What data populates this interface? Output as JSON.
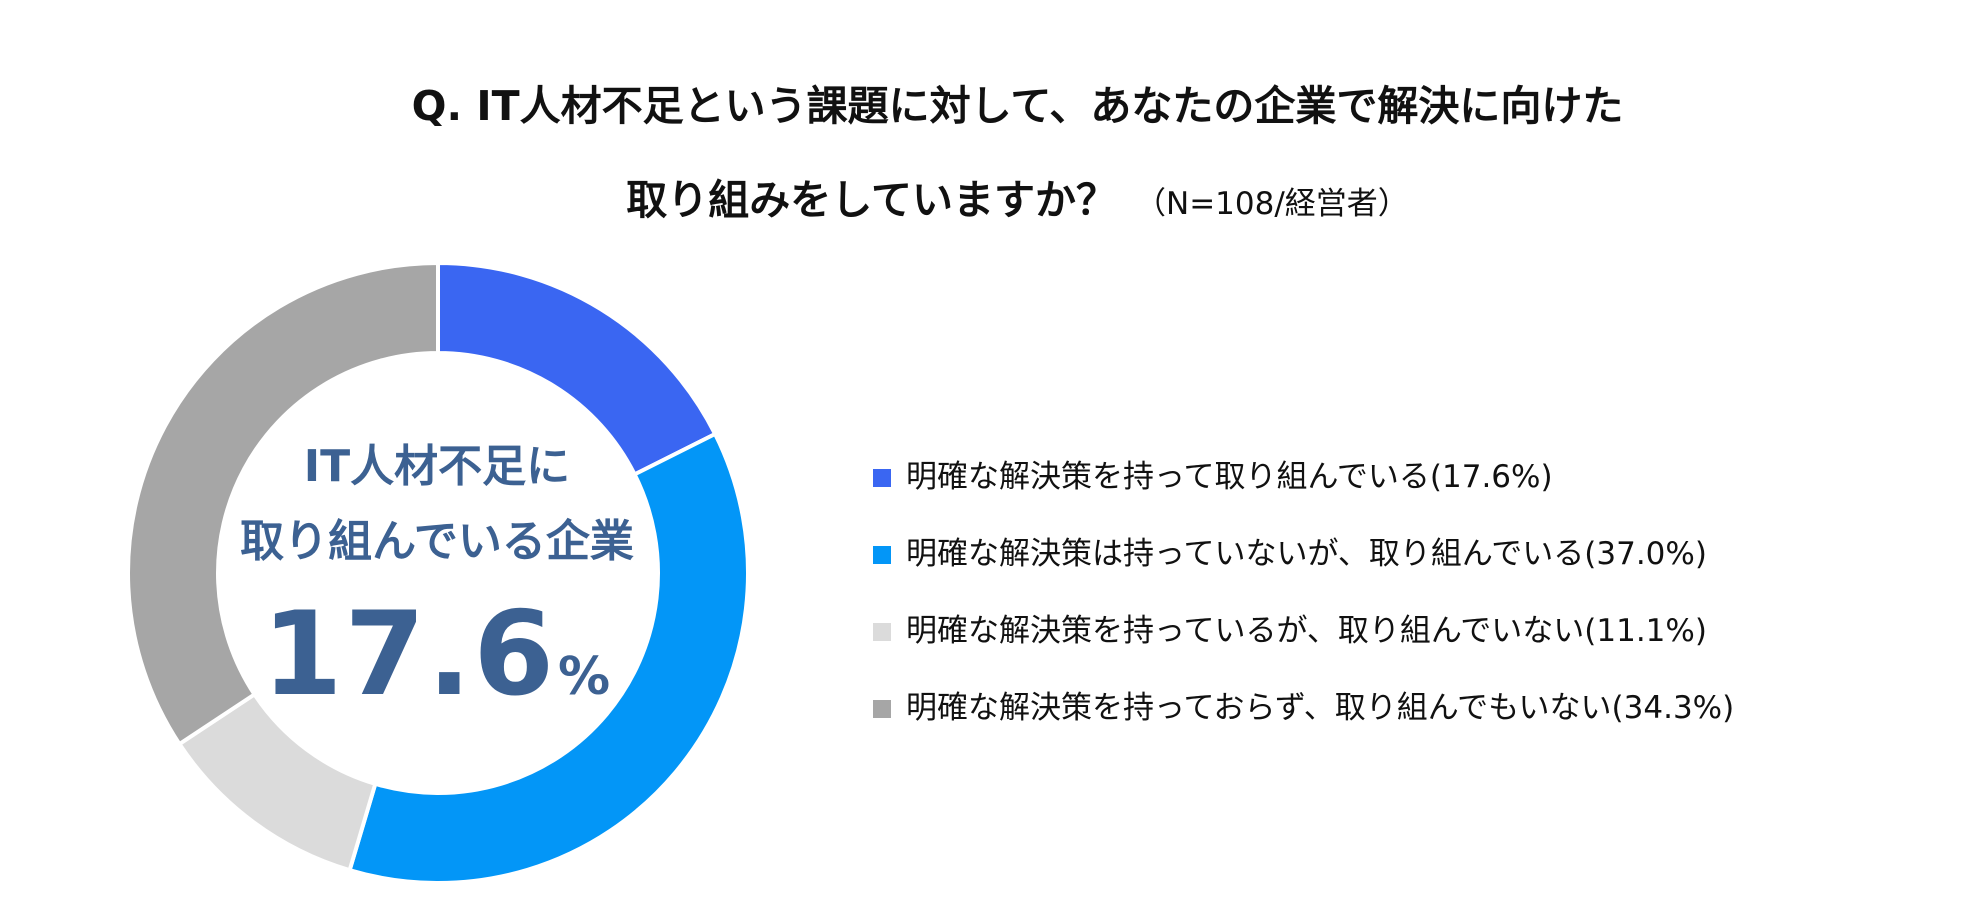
{
  "title": {
    "line1": "Q. IT人材不足という課題に対して、あなたの企業で解決に向けた",
    "line2": "取り組みをしていますか？",
    "sample": "（N=108/経営者）"
  },
  "center": {
    "line1": "IT人材不足に",
    "line2": "取り組んでいる企業",
    "value": "17.6",
    "unit": "%"
  },
  "chart_data": {
    "type": "pie",
    "donut": true,
    "title": "Q. IT人材不足という課題に対して、あなたの企業で解決に向けた取り組みをしていますか？",
    "note": "（N=108/経営者）",
    "legend_position": "right",
    "series": [
      {
        "label": "明確な解決策を持って取り組んでいる(17.6%)",
        "value": 17.6,
        "color": "#3a66f2"
      },
      {
        "label": "明確な解決策は持っていないが、取り組んでいる(37.0%)",
        "value": 37.0,
        "color": "#0396f7"
      },
      {
        "label": "明確な解決策を持っているが、取り組んでいない(11.1%)",
        "value": 11.1,
        "color": "#dbdbdb"
      },
      {
        "label": "明確な解決策を持っておらず、取り組んでもいない(34.3%)",
        "value": 34.3,
        "color": "#a6a6a6"
      }
    ]
  }
}
